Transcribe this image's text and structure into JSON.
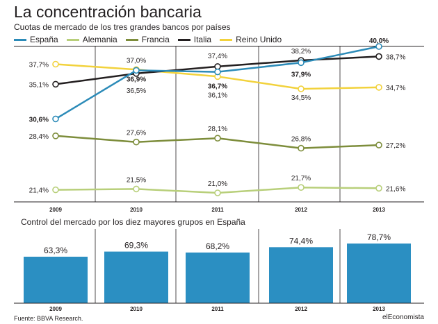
{
  "header": {
    "title": "La concentración bancaria",
    "subtitle": "Cuotas de mercado de los tres grandes bancos por países"
  },
  "footer": {
    "source": "Fuente: BBVA Research.",
    "logo": "elEconomista"
  },
  "chart_data": [
    {
      "type": "line",
      "title": "Cuotas de mercado de los tres grandes bancos por países",
      "x": [
        "2009",
        "2010",
        "2011",
        "2012",
        "2013"
      ],
      "ylim": [
        20,
        41
      ],
      "legend_position": "top",
      "series": [
        {
          "name": "España",
          "color": "#2c8bb8",
          "values": [
            30.6,
            36.9,
            36.7,
            37.9,
            40.0
          ],
          "labels": [
            "30,6%",
            "36,9%",
            "36,7%",
            "37,9%",
            "40,0%"
          ]
        },
        {
          "name": "Alemania",
          "color": "#b8cf7a",
          "values": [
            21.4,
            21.5,
            21.0,
            21.7,
            21.6
          ],
          "labels": [
            "21,4%",
            "21,5%",
            "21,0%",
            "21,7%",
            "21,6%"
          ]
        },
        {
          "name": "Francia",
          "color": "#7d8d3b",
          "values": [
            28.4,
            27.6,
            28.1,
            26.8,
            27.2
          ],
          "labels": [
            "28,4%",
            "27,6%",
            "28,1%",
            "26,8%",
            "27,2%"
          ]
        },
        {
          "name": "Italia",
          "color": "#231f20",
          "values": [
            35.1,
            36.5,
            37.4,
            38.2,
            38.7
          ],
          "labels": [
            "35,1%",
            "36,5%",
            "37,4%",
            "38,2%",
            "38,7%"
          ]
        },
        {
          "name": "Reino Unido",
          "color": "#f2d23c",
          "values": [
            37.7,
            37.0,
            36.1,
            34.5,
            34.7
          ],
          "labels": [
            "37,7%",
            "37,0%",
            "36,1%",
            "34,5%",
            "34,7%"
          ]
        }
      ]
    },
    {
      "type": "bar",
      "title": "Control del mercado por los diez mayores grupos en España",
      "categories": [
        "2009",
        "2010",
        "2011",
        "2012",
        "2013"
      ],
      "values": [
        63.3,
        69.3,
        68.2,
        74.4,
        78.7
      ],
      "labels": [
        "63,3%",
        "69,3%",
        "68,2%",
        "74,4%",
        "78,7%"
      ],
      "color": "#2b8fc2",
      "ylim": [
        0,
        80
      ]
    }
  ]
}
